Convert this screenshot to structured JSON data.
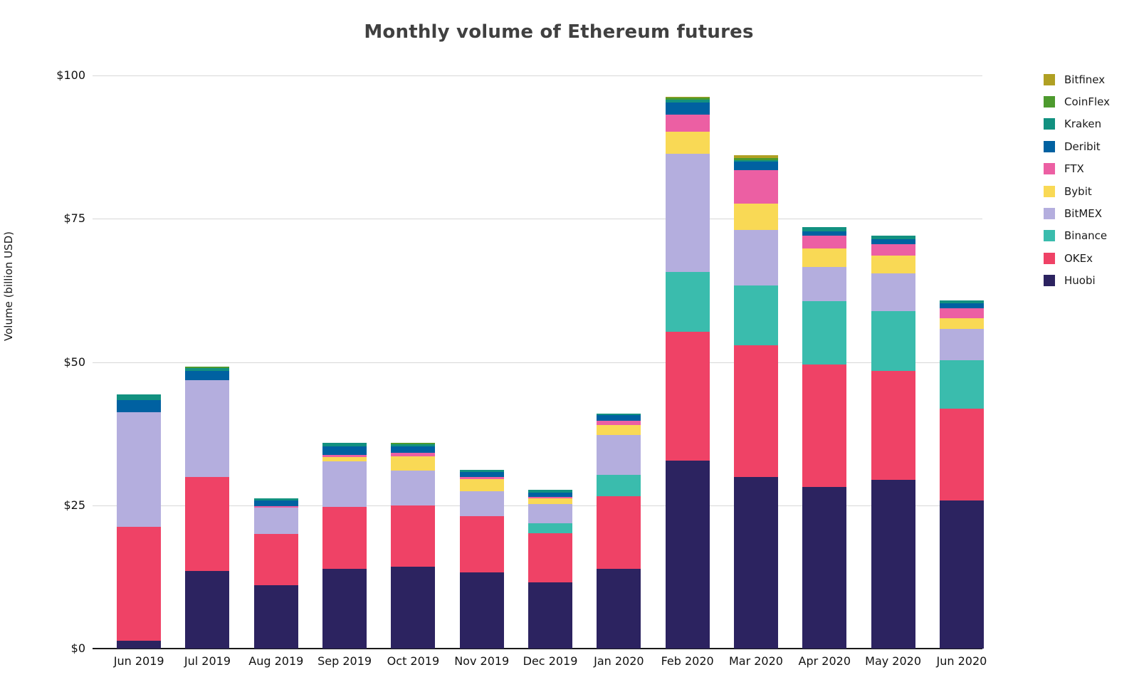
{
  "chart_data": {
    "type": "bar",
    "stacked": true,
    "title": "Monthly volume of Ethereum futures",
    "xlabel": "",
    "ylabel": "Volume (billion USD)",
    "ylim": [
      0,
      100
    ],
    "grid": true,
    "legend_position": "right",
    "yticks": [
      {
        "value": 0,
        "label": "$0"
      },
      {
        "value": 25,
        "label": "$25"
      },
      {
        "value": 50,
        "label": "$50"
      },
      {
        "value": 75,
        "label": "$75"
      },
      {
        "value": 100,
        "label": "$100"
      }
    ],
    "categories": [
      "Jun 2019",
      "Jul 2019",
      "Aug 2019",
      "Sep 2019",
      "Oct 2019",
      "Nov 2019",
      "Dec 2019",
      "Jan 2020",
      "Feb 2020",
      "Mar 2020",
      "Apr 2020",
      "May 2020",
      "Jun 2020"
    ],
    "series_note": "values in billion USD, listed bottom-to-top of stack",
    "series": [
      {
        "name": "Huobi",
        "color": "#2c2360",
        "values": [
          1.4,
          13.5,
          11.0,
          13.9,
          14.3,
          13.3,
          11.6,
          13.9,
          32.8,
          29.9,
          28.2,
          29.5,
          25.8
        ]
      },
      {
        "name": "OKEx",
        "color": "#ef4266",
        "values": [
          19.8,
          16.4,
          9.0,
          10.8,
          10.7,
          9.8,
          8.5,
          12.7,
          22.5,
          23.0,
          21.4,
          19.0,
          16.1
        ]
      },
      {
        "name": "Binance",
        "color": "#3abcad",
        "values": [
          0,
          0,
          0,
          0,
          0,
          0,
          1.8,
          3.7,
          10.4,
          10.5,
          11.0,
          10.4,
          8.4
        ]
      },
      {
        "name": "BitMEX",
        "color": "#b4aede",
        "values": [
          20.0,
          16.9,
          4.6,
          8.0,
          6.0,
          4.4,
          3.3,
          7.0,
          20.7,
          9.7,
          6.0,
          6.6,
          5.5
        ]
      },
      {
        "name": "Bybit",
        "color": "#f9d955",
        "values": [
          0,
          0,
          0,
          0.7,
          2.5,
          2.1,
          1.0,
          1.7,
          3.8,
          4.5,
          3.2,
          3.1,
          1.9
        ]
      },
      {
        "name": "FTX",
        "color": "#ec5fa3",
        "values": [
          0,
          0,
          0.3,
          0.4,
          0.7,
          0.4,
          0.3,
          0.7,
          3.0,
          5.9,
          2.3,
          2.0,
          1.7
        ]
      },
      {
        "name": "Deribit",
        "color": "#0061a1",
        "values": [
          2.2,
          1.7,
          1.0,
          1.5,
          1.1,
          0.8,
          0.7,
          1.0,
          2.1,
          1.5,
          0.7,
          0.8,
          0.8
        ]
      },
      {
        "name": "Kraken",
        "color": "#129180",
        "values": [
          0.9,
          0.4,
          0.3,
          0.6,
          0.3,
          0.4,
          0.5,
          0.3,
          0.5,
          0.2,
          0.8,
          0.6,
          0.5
        ]
      },
      {
        "name": "CoinFlex",
        "color": "#4d9a2e",
        "values": [
          0,
          0.3,
          0,
          0,
          0.3,
          0,
          0,
          0,
          0.3,
          0.4,
          0,
          0,
          0
        ]
      },
      {
        "name": "Bitfinex",
        "color": "#b0a023",
        "values": [
          0,
          0,
          0,
          0,
          0,
          0,
          0,
          0,
          0.2,
          0.5,
          0,
          0,
          0
        ]
      }
    ],
    "totals": [
      44.3,
      49.2,
      26.2,
      35.9,
      35.9,
      31.2,
      27.7,
      41.0,
      96.3,
      86.1,
      73.6,
      72.0,
      60.7
    ]
  },
  "colors": {
    "gridline": "#d8d8d8",
    "axis_line": "#1a1a1a",
    "title_text": "#404040",
    "tick_text": "#111111"
  }
}
